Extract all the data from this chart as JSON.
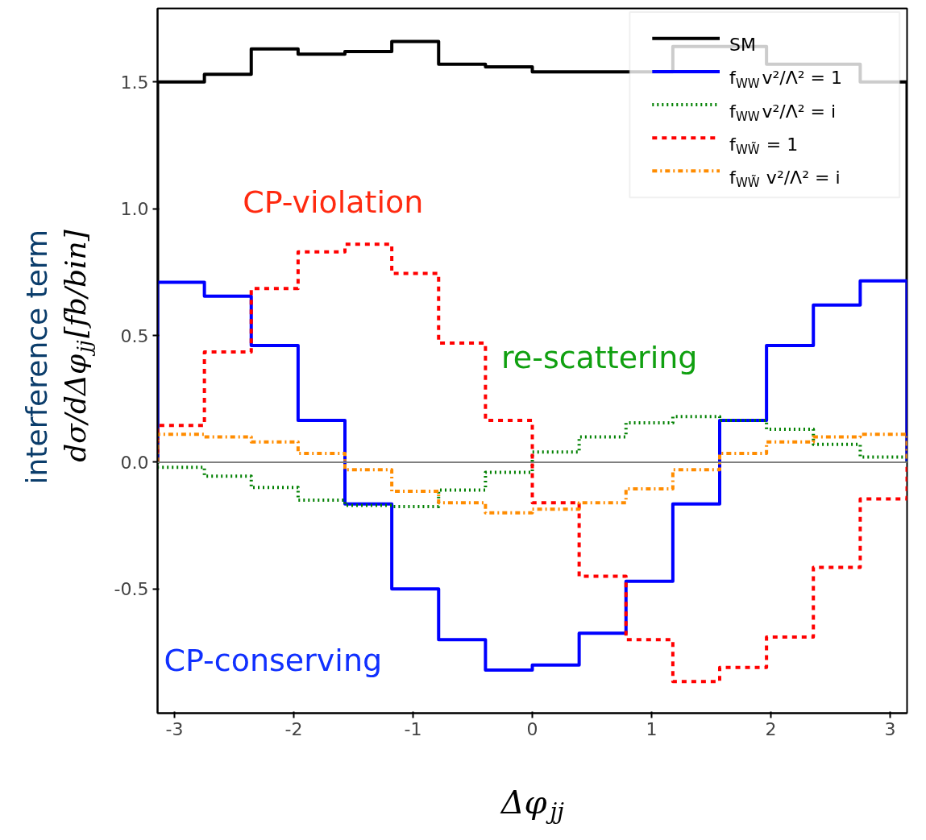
{
  "chart_data": {
    "type": "histogram",
    "xlabel": "Δφ$_{jj}$",
    "ylabel": "interference term\ndσ/dΔφ$_{jj}$[fb/bin]",
    "bins": [
      -3.1416,
      -2.7489,
      -2.3562,
      -1.9635,
      -1.5708,
      -1.1781,
      -0.7854,
      -0.3927,
      0,
      0.3927,
      0.7854,
      1.1781,
      1.5708,
      1.9635,
      2.3562,
      2.7489,
      3.1416
    ],
    "series": [
      {
        "name": "SM",
        "color": "#000000",
        "line_style": "solid",
        "values": [
          1.5,
          1.53,
          1.63,
          1.61,
          1.62,
          1.66,
          1.57,
          1.56,
          1.54,
          1.54,
          1.54,
          1.64,
          1.64,
          1.57,
          1.57,
          1.5
        ]
      },
      {
        "name": "f$_{WW}$v²/Λ² = 1",
        "color": "#0000ff",
        "line_style": "solid",
        "values": [
          0.71,
          0.655,
          0.46,
          0.165,
          -0.165,
          -0.5,
          -0.7,
          -0.82,
          -0.8,
          -0.675,
          -0.47,
          -0.165,
          0.165,
          0.46,
          0.62,
          0.715
        ]
      },
      {
        "name": "f$_{WW}$v²/Λ² = i",
        "color": "#008000",
        "line_style": "dotted",
        "values": [
          -0.02,
          -0.055,
          -0.1,
          -0.15,
          -0.17,
          -0.175,
          -0.11,
          -0.04,
          0.04,
          0.1,
          0.155,
          0.18,
          0.165,
          0.13,
          0.07,
          0.02
        ]
      },
      {
        "name": "f$_{WW̃}$ = 1",
        "color": "#ff0000",
        "line_style": "dashed",
        "values": [
          0.145,
          0.435,
          0.685,
          0.83,
          0.86,
          0.745,
          0.47,
          0.165,
          -0.16,
          -0.45,
          -0.7,
          -0.865,
          -0.81,
          -0.69,
          -0.415,
          -0.145
        ]
      },
      {
        "name": "f$_{WW̃}$v²/Λ² = i",
        "color": "#ff8c00",
        "line_style": "dashdot",
        "values": [
          0.11,
          0.1,
          0.08,
          0.035,
          -0.03,
          -0.115,
          -0.16,
          -0.2,
          -0.185,
          -0.16,
          -0.105,
          -0.03,
          0.035,
          0.08,
          0.1,
          0.11
        ]
      }
    ],
    "xlim": [
      -3.1416,
      3.1416
    ],
    "ylim": [
      -0.99,
      1.79
    ],
    "xticks": [
      -3,
      -2,
      -1,
      0,
      1,
      2,
      3
    ],
    "yticks": [
      -0.5,
      {
        "value": 0,
        "label": "0.0"
      },
      0.5,
      {
        "value": 1,
        "label": "1.0"
      },
      1.5
    ],
    "ref_lines": [
      {
        "axis": "y",
        "value": 0,
        "color": "#808080"
      }
    ],
    "annotations": [
      "CP-violation",
      "re-scattering",
      "CP-conserving"
    ],
    "grid": false,
    "legend": "top right"
  }
}
